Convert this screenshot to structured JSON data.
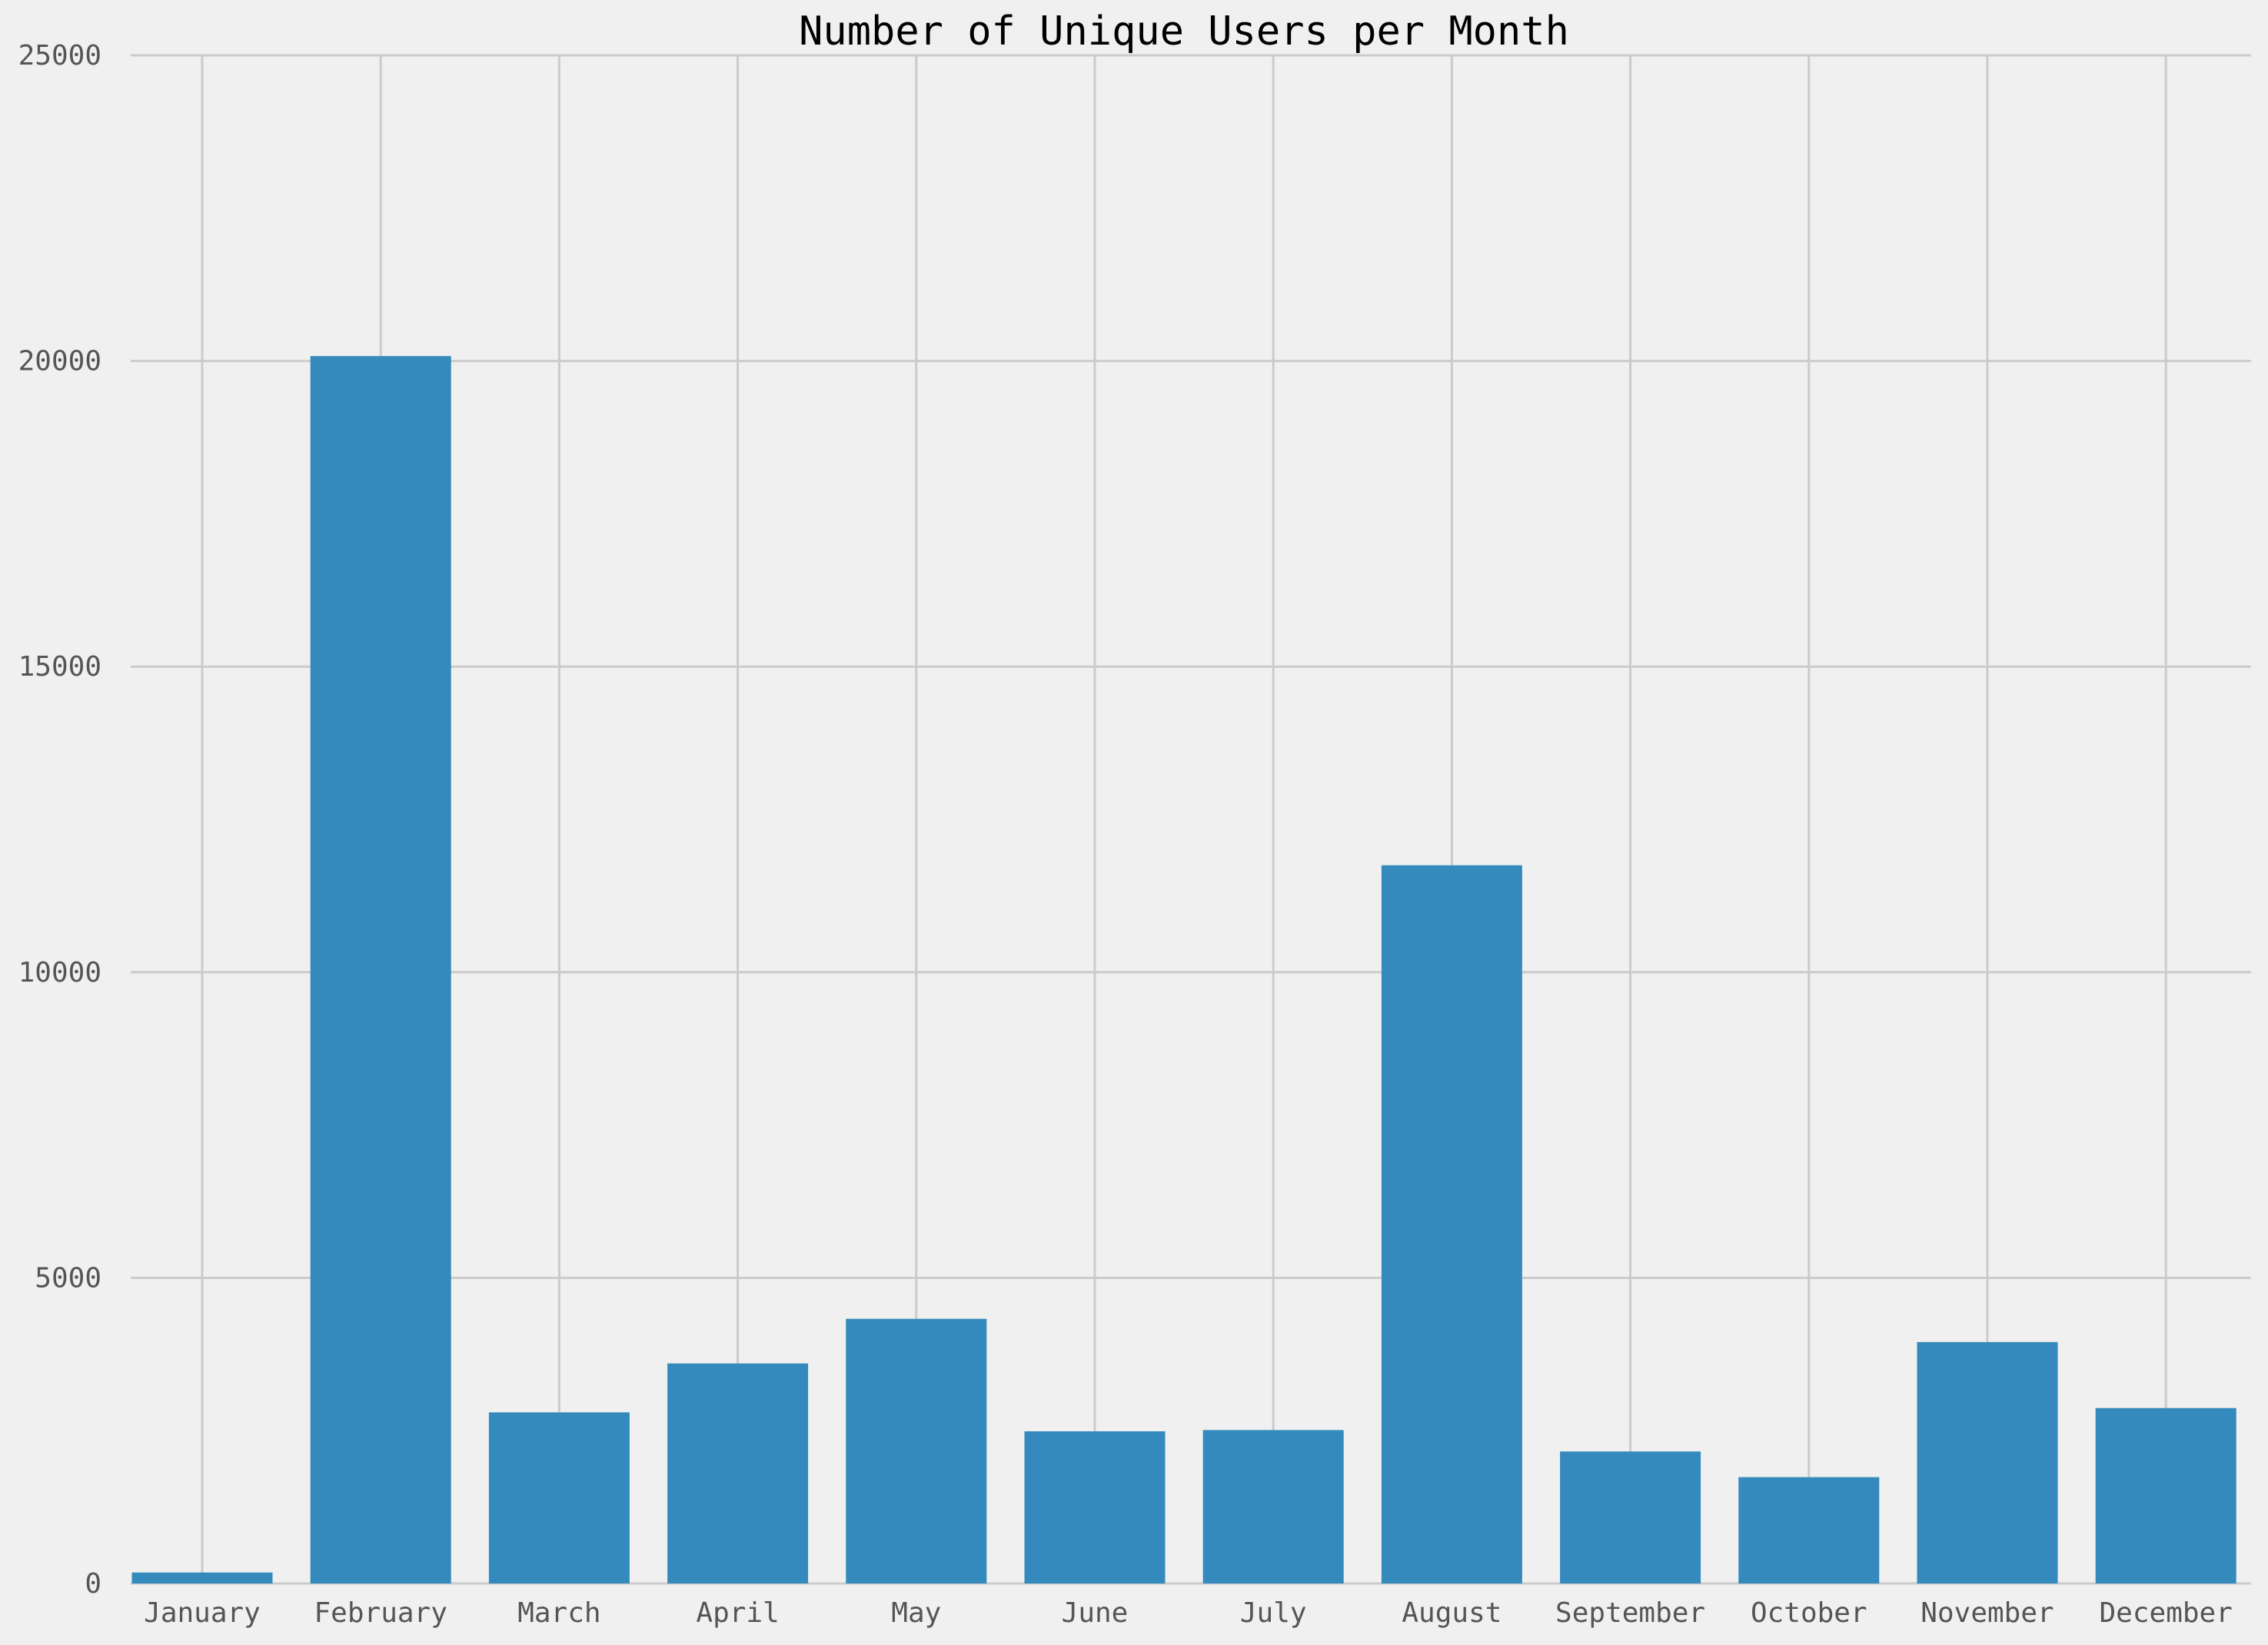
{
  "chart_data": {
    "type": "bar",
    "title": "Number of Unique Users per Month",
    "xlabel": "",
    "ylabel": "",
    "categories": [
      "January",
      "February",
      "March",
      "April",
      "May",
      "June",
      "July",
      "August",
      "September",
      "October",
      "November",
      "December"
    ],
    "values": [
      180,
      20080,
      2800,
      3600,
      4330,
      2490,
      2510,
      11750,
      2160,
      1740,
      3950,
      2870
    ],
    "ylim": [
      0,
      25000
    ],
    "yticks": [
      0,
      5000,
      10000,
      15000,
      20000,
      25000
    ],
    "grid": true,
    "legend": "none",
    "colors": {
      "bar": "#348abd",
      "background": "#f0f0f0",
      "grid": "#cbcbcb",
      "tick_text": "#555555",
      "title_text": "#000000"
    }
  }
}
